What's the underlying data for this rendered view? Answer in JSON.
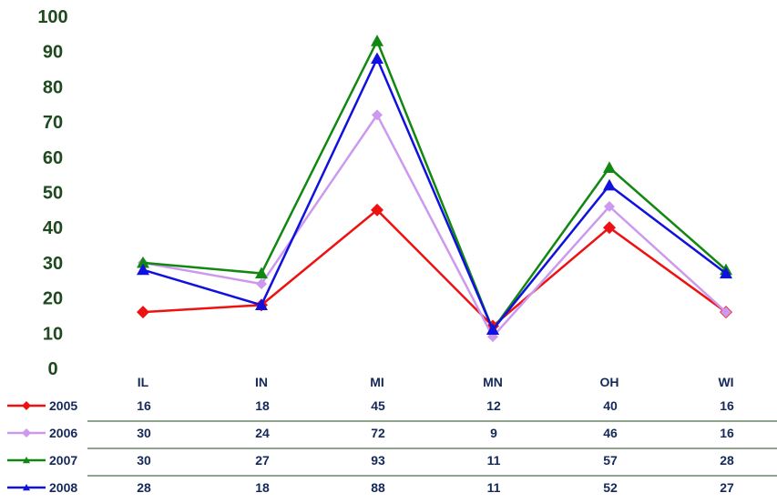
{
  "chart_data": {
    "type": "line",
    "categories": [
      "IL",
      "IN",
      "MI",
      "MN",
      "OH",
      "WI"
    ],
    "ylim": [
      0,
      100
    ],
    "yticks": [
      "0",
      "10",
      "20",
      "30",
      "40",
      "50",
      "60",
      "70",
      "80",
      "90",
      "100"
    ],
    "grid": false,
    "legend": "bottom-left data table",
    "series": [
      {
        "name": "2005",
        "color": "#ee1111",
        "marker": "diamond",
        "values": [
          16,
          18,
          45,
          12,
          40,
          16
        ]
      },
      {
        "name": "2006",
        "color": "#cc99ee",
        "marker": "diamond",
        "values": [
          30,
          24,
          72,
          9,
          46,
          16
        ]
      },
      {
        "name": "2007",
        "color": "#118811",
        "marker": "triangle",
        "values": [
          30,
          27,
          93,
          11,
          57,
          28
        ]
      },
      {
        "name": "2008",
        "color": "#1111dd",
        "marker": "triangle",
        "values": [
          28,
          18,
          88,
          11,
          52,
          27
        ]
      }
    ]
  }
}
